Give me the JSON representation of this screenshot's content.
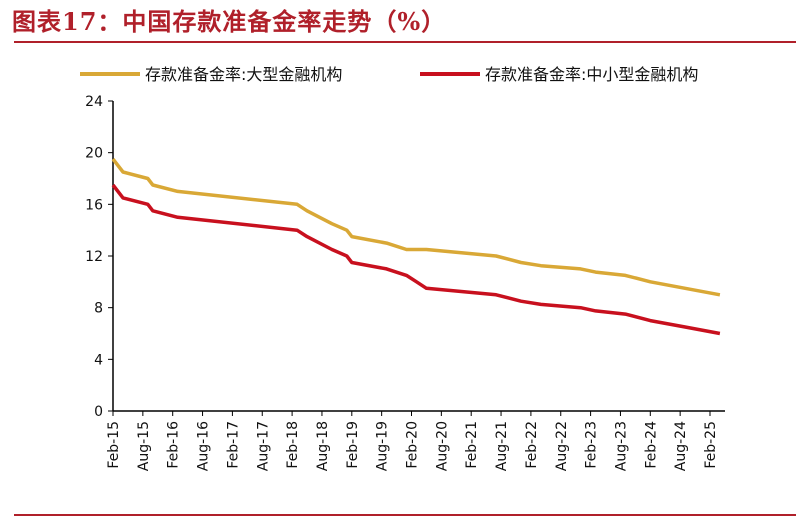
{
  "title": "图表17：中国存款准备金率走势（%）",
  "chart_data": {
    "type": "line",
    "title": "图表17：中国存款准备金率走势（%）",
    "xlabel": "",
    "ylabel": "",
    "ylim": [
      0,
      24
    ],
    "yticks": [
      0,
      4,
      8,
      12,
      16,
      20,
      24
    ],
    "xlim": [
      "2015-02",
      "2025-04"
    ],
    "xticks": [
      "Feb-15",
      "Aug-15",
      "Feb-16",
      "Aug-16",
      "Feb-17",
      "Aug-17",
      "Feb-18",
      "Aug-18",
      "Feb-19",
      "Aug-19",
      "Feb-20",
      "Aug-20",
      "Feb-21",
      "Aug-21",
      "Feb-22",
      "Aug-22",
      "Feb-23",
      "Aug-23",
      "Feb-24",
      "Aug-24",
      "Feb-25"
    ],
    "grid": false,
    "legend": "top",
    "series": [
      {
        "name": "存款准备金率:大型金融机构",
        "color": "#d9a836",
        "points": [
          [
            "2015-02",
            19.5
          ],
          [
            "2015-04",
            18.5
          ],
          [
            "2015-09",
            18.0
          ],
          [
            "2015-10",
            17.5
          ],
          [
            "2016-03",
            17.0
          ],
          [
            "2018-03",
            16.0
          ],
          [
            "2018-05",
            15.5
          ],
          [
            "2018-10",
            14.5
          ],
          [
            "2019-01",
            14.0
          ],
          [
            "2019-02",
            13.5
          ],
          [
            "2019-09",
            13.0
          ],
          [
            "2020-01",
            12.5
          ],
          [
            "2020-05",
            12.5
          ],
          [
            "2021-07",
            12.0
          ],
          [
            "2021-12",
            11.5
          ],
          [
            "2022-04",
            11.25
          ],
          [
            "2022-12",
            11.0
          ],
          [
            "2023-03",
            10.75
          ],
          [
            "2023-09",
            10.5
          ],
          [
            "2024-02",
            10.0
          ],
          [
            "2024-09",
            9.5
          ],
          [
            "2025-04",
            9.0
          ]
        ]
      },
      {
        "name": "存款准备金率:中小型金融机构",
        "color": "#c8101e",
        "points": [
          [
            "2015-02",
            17.5
          ],
          [
            "2015-04",
            16.5
          ],
          [
            "2015-09",
            16.0
          ],
          [
            "2015-10",
            15.5
          ],
          [
            "2016-03",
            15.0
          ],
          [
            "2018-03",
            14.0
          ],
          [
            "2018-05",
            13.5
          ],
          [
            "2018-10",
            12.5
          ],
          [
            "2019-01",
            12.0
          ],
          [
            "2019-02",
            11.5
          ],
          [
            "2019-09",
            11.0
          ],
          [
            "2020-01",
            10.5
          ],
          [
            "2020-03",
            10.0
          ],
          [
            "2020-05",
            9.5
          ],
          [
            "2021-07",
            9.0
          ],
          [
            "2021-12",
            8.5
          ],
          [
            "2022-04",
            8.25
          ],
          [
            "2022-12",
            8.0
          ],
          [
            "2023-03",
            7.75
          ],
          [
            "2023-09",
            7.5
          ],
          [
            "2024-02",
            7.0
          ],
          [
            "2024-09",
            6.5
          ],
          [
            "2025-04",
            6.0
          ]
        ]
      }
    ]
  }
}
